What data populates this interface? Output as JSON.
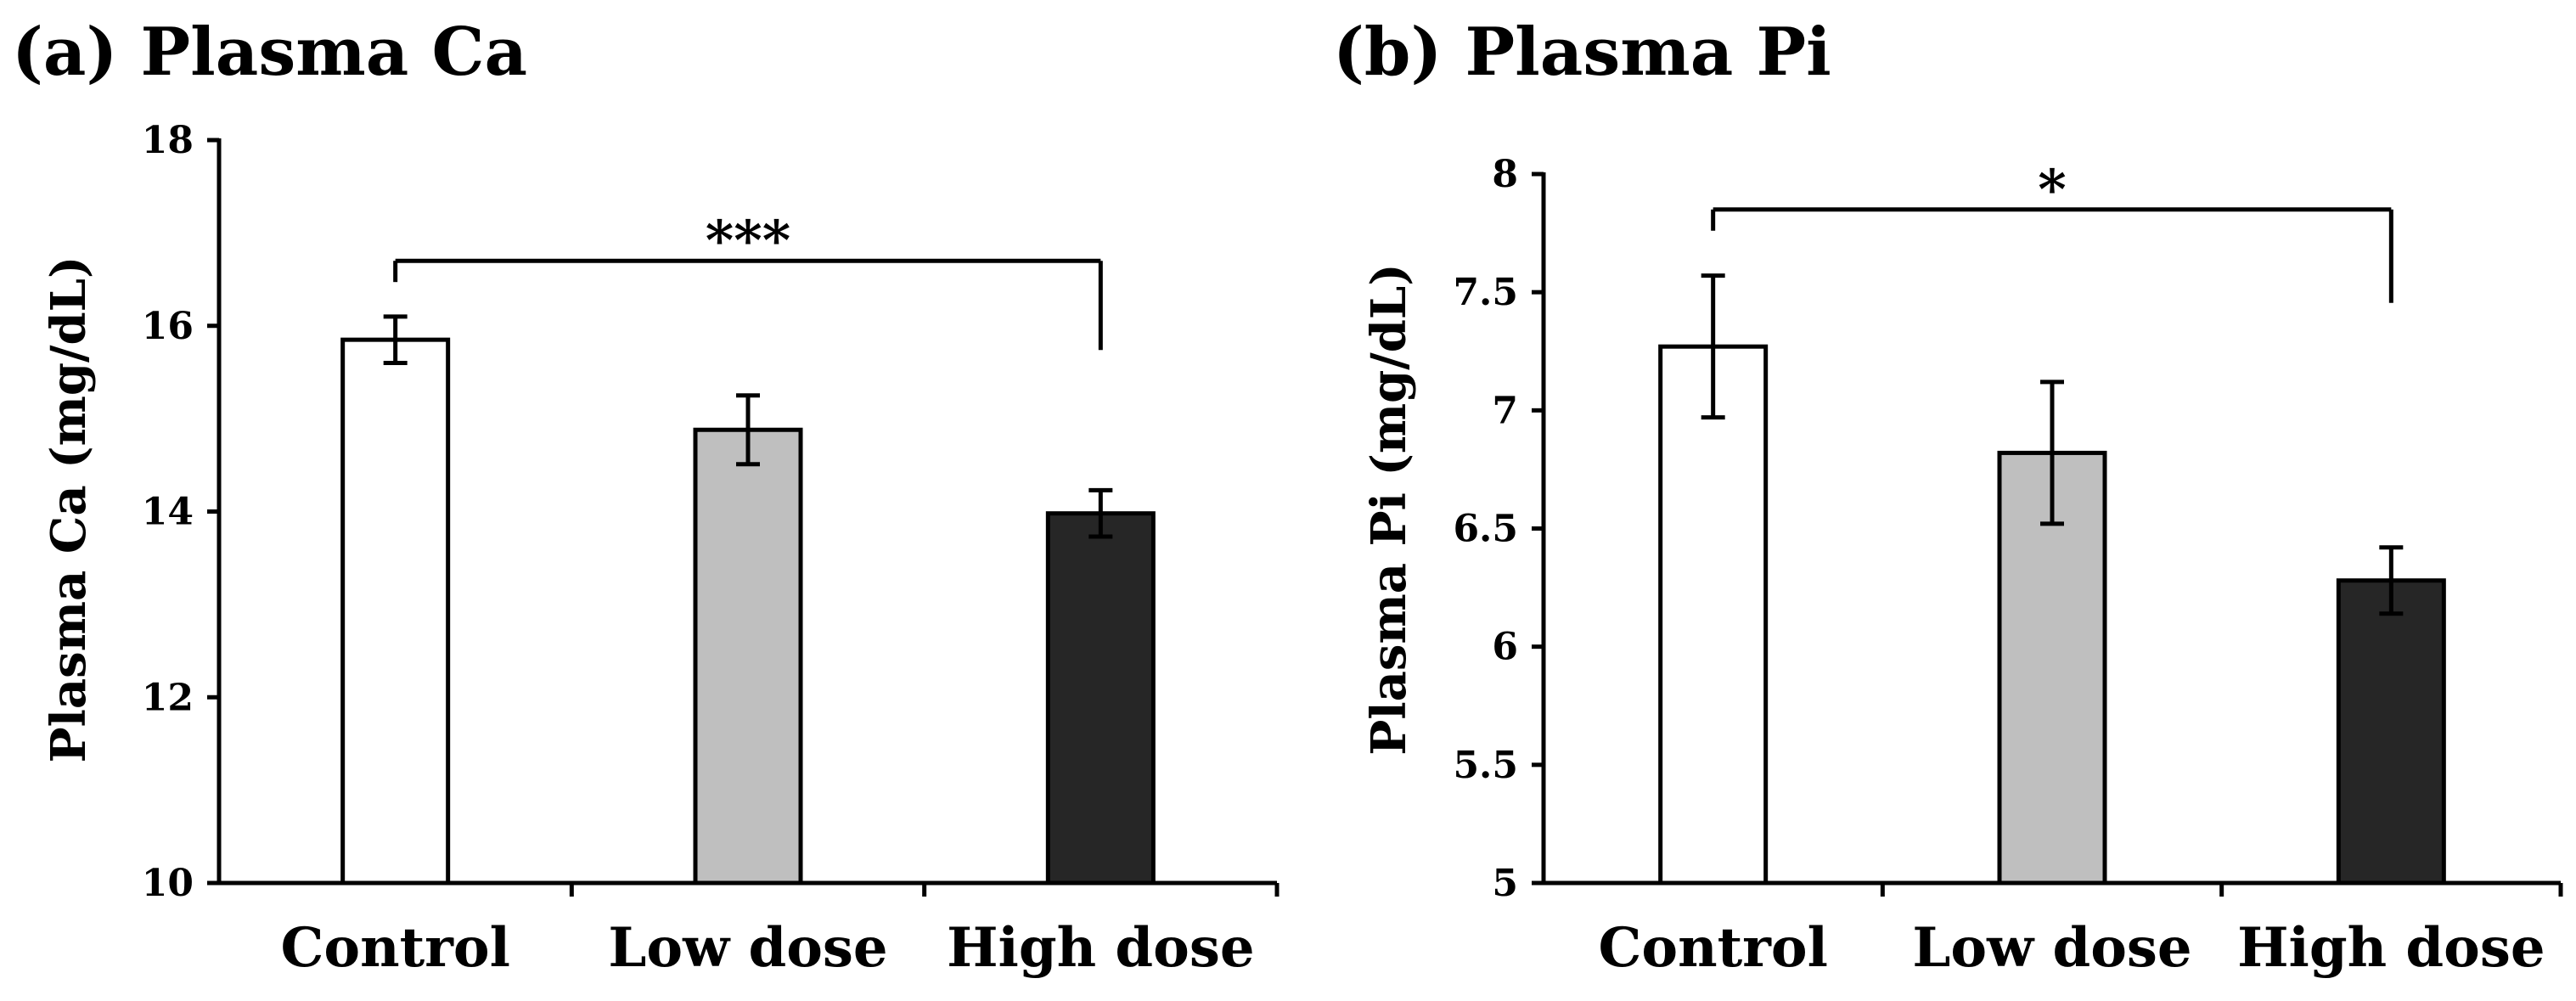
{
  "chart_data": [
    {
      "type": "bar",
      "title": "(a) Plasma Ca",
      "xlabel": "",
      "ylabel": "Plasma Ca (mg/dL)",
      "ylim": [
        10,
        18
      ],
      "yticks": [
        10,
        12,
        14,
        16,
        18
      ],
      "ytick_labels": [
        "10",
        "12",
        "14",
        "16",
        "18"
      ],
      "categories": [
        "Control",
        "Low dose",
        "High dose"
      ],
      "values": [
        15.85,
        14.88,
        13.98
      ],
      "errors": [
        0.25,
        0.37,
        0.25
      ],
      "colors": [
        "#ffffff",
        "#bfbfbf",
        "#262626"
      ],
      "significance": {
        "from": 0,
        "to": 2,
        "label": "***",
        "level": 16.7
      }
    },
    {
      "type": "bar",
      "title": "(b) Plasma Pi",
      "xlabel": "",
      "ylabel": "Plasma Pi (mg/dL)",
      "ylim": [
        5,
        8
      ],
      "yticks": [
        5,
        5.5,
        6,
        6.5,
        7,
        7.5,
        8
      ],
      "ytick_labels": [
        "5",
        "5.5",
        "6",
        "6.5",
        "7",
        "7.5",
        "8"
      ],
      "categories": [
        "Control",
        "Low dose",
        "High dose"
      ],
      "values": [
        7.27,
        6.82,
        6.28
      ],
      "errors": [
        0.3,
        0.3,
        0.14
      ],
      "colors": [
        "#ffffff",
        "#bfbfbf",
        "#262626"
      ],
      "significance": {
        "from": 0,
        "to": 2,
        "label": "*",
        "level": 7.85
      }
    }
  ]
}
